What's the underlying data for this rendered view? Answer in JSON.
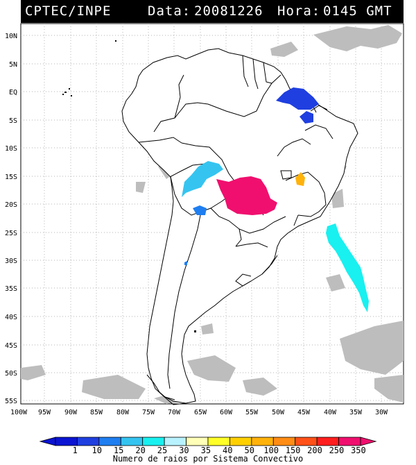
{
  "header": {
    "source": "CPTEC/INPE",
    "date_label": "Data:",
    "date_value": "20081226",
    "time_label": "Hora:",
    "time_value": "0145 GMT"
  },
  "map": {
    "lat_labels": [
      "10N",
      "5N",
      "EQ",
      "5S",
      "10S",
      "15S",
      "20S",
      "25S",
      "30S",
      "35S",
      "40S",
      "45S",
      "50S",
      "55S"
    ],
    "lon_labels": [
      "100W",
      "95W",
      "90W",
      "85W",
      "80W",
      "75W",
      "70W",
      "65W",
      "60W",
      "55W",
      "50W",
      "45W",
      "40W",
      "35W",
      "30W"
    ],
    "land_color": "#ffffff",
    "border_color": "#000000",
    "cloud_color": "#bdbdbd",
    "grid_style": "dotted",
    "storm_systems": [
      {
        "name": "north-coast",
        "count": "10",
        "color": "#1f3fe0"
      },
      {
        "name": "northeast-small",
        "count": "10",
        "color": "#1f3fe0"
      },
      {
        "name": "bolivia-north",
        "count": "20",
        "color": "#35c4f0"
      },
      {
        "name": "bolivia-south",
        "count": "15",
        "color": "#1f7ef0"
      },
      {
        "name": "central-brazil",
        "count": "350",
        "color": "#f00f6e"
      },
      {
        "name": "minas-small",
        "count": "100",
        "color": "#ffb20a"
      },
      {
        "name": "atlantic",
        "count": "25",
        "color": "#19f0f0"
      }
    ]
  },
  "colorbar": {
    "caption": "Numero de raios por Sistema Convectivo",
    "ticks": [
      "1",
      "10",
      "15",
      "20",
      "25",
      "30",
      "35",
      "40",
      "50",
      "100",
      "150",
      "200",
      "250",
      "350"
    ],
    "colors": [
      "#0a14d2",
      "#1f3fe0",
      "#1f7ef0",
      "#35c4f0",
      "#19f0f0",
      "#b8f2ff",
      "#ffffb8",
      "#ffff28",
      "#ffd000",
      "#ffb20a",
      "#ff8c14",
      "#ff5018",
      "#ff1e1e",
      "#f00f6e"
    ]
  }
}
